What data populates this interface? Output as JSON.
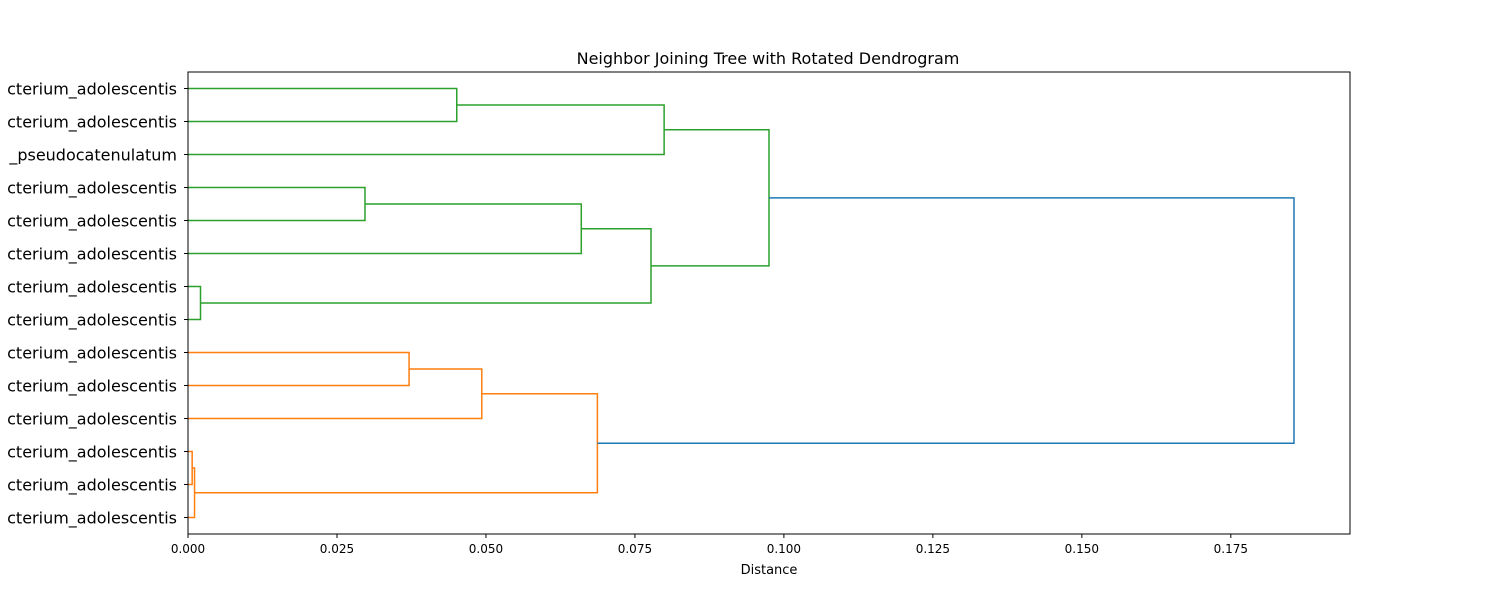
{
  "chart_data": {
    "type": "dendrogram",
    "orientation": "left",
    "title": "Neighbor Joining Tree with Rotated Dendrogram",
    "xlabel": "Distance",
    "ylabel": "",
    "xlim": [
      0,
      0.195
    ],
    "x_ticks": [
      0.0,
      0.025,
      0.05,
      0.075,
      0.1,
      0.125,
      0.15,
      0.175
    ],
    "x_tick_labels": [
      "0.000",
      "0.025",
      "0.050",
      "0.075",
      "0.100",
      "0.125",
      "0.150",
      "0.175"
    ],
    "grid": false,
    "leaves": [
      "cterium_adolescentis",
      "cterium_adolescentis",
      "_pseudocatenulatum",
      "cterium_adolescentis",
      "cterium_adolescentis",
      "cterium_adolescentis",
      "cterium_adolescentis",
      "cterium_adolescentis",
      "cterium_adolescentis",
      "cterium_adolescentis",
      "cterium_adolescentis",
      "cterium_adolescentis",
      "cterium_adolescentis",
      "cterium_adolescentis"
    ],
    "colors": {
      "green": "#2ca02c",
      "orange": "#ff7f0e",
      "blue": "#1f77b4"
    },
    "nodes": [
      {
        "id": "n1",
        "children": [
          0,
          1
        ],
        "height": 0.0451,
        "color": "green"
      },
      {
        "id": "n2",
        "children": [
          "n1",
          2
        ],
        "height": 0.0799,
        "color": "green"
      },
      {
        "id": "n3",
        "children": [
          3,
          4
        ],
        "height": 0.0297,
        "color": "green"
      },
      {
        "id": "n4",
        "children": [
          "n3",
          5
        ],
        "height": 0.066,
        "color": "green"
      },
      {
        "id": "n5",
        "children": [
          6,
          7
        ],
        "height": 0.0021,
        "color": "green"
      },
      {
        "id": "n6",
        "children": [
          "n4",
          "n5"
        ],
        "height": 0.0777,
        "color": "green"
      },
      {
        "id": "n7",
        "children": [
          "n2",
          "n6"
        ],
        "height": 0.0975,
        "color": "green"
      },
      {
        "id": "n8",
        "children": [
          8,
          9
        ],
        "height": 0.0371,
        "color": "orange"
      },
      {
        "id": "n9",
        "children": [
          "n8",
          10
        ],
        "height": 0.0493,
        "color": "orange"
      },
      {
        "id": "n10",
        "children": [
          11,
          12
        ],
        "height": 0.0007,
        "color": "orange"
      },
      {
        "id": "n11",
        "children": [
          "n10",
          13
        ],
        "height": 0.0011,
        "color": "orange"
      },
      {
        "id": "n12",
        "children": [
          "n9",
          "n11"
        ],
        "height": 0.0687,
        "color": "orange"
      },
      {
        "id": "n13",
        "children": [
          "n7",
          "n12"
        ],
        "height": 0.1856,
        "color": "blue"
      }
    ]
  }
}
